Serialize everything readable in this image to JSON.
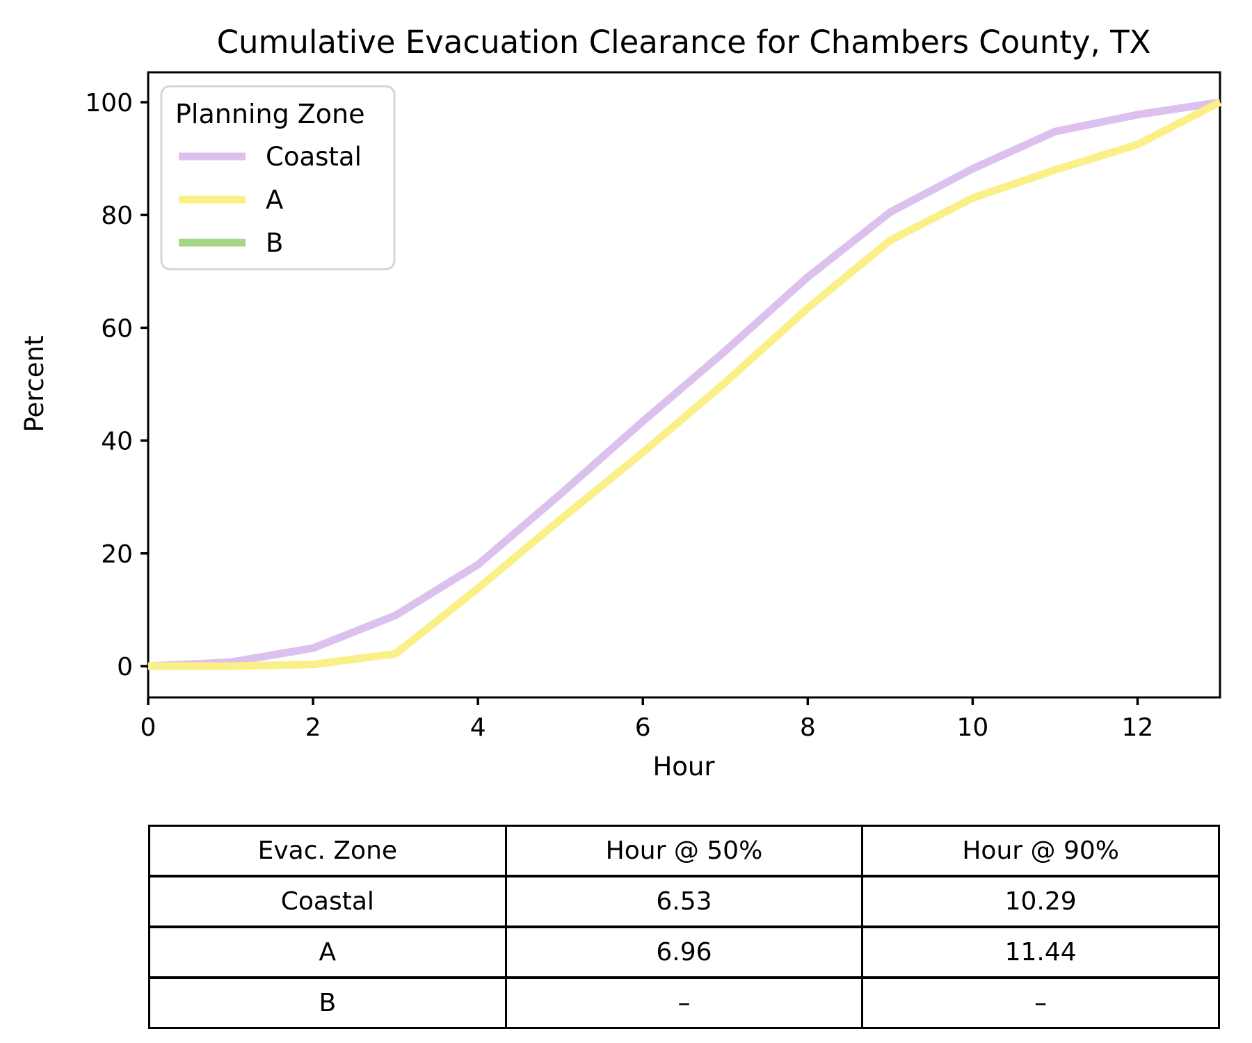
{
  "chart_data": {
    "type": "line",
    "title": "Cumulative Evacuation Clearance for Chambers County, TX",
    "xlabel": "Hour",
    "ylabel": "Percent",
    "xlim": [
      0,
      13
    ],
    "ylim": [
      -5.5,
      105.3
    ],
    "grid": false,
    "x_ticks": [
      0,
      2,
      4,
      6,
      8,
      10,
      12
    ],
    "y_ticks": [
      0,
      20,
      40,
      60,
      80,
      100
    ],
    "legend": {
      "title": "Planning Zone",
      "position": "upper-left"
    },
    "x": [
      0,
      1,
      2,
      3,
      4,
      5,
      6,
      7,
      8,
      9,
      10,
      11,
      12,
      13
    ],
    "series": [
      {
        "name": "Coastal",
        "color": "#dcc0ee",
        "values": [
          0,
          0.7,
          3.2,
          9,
          18,
          30.5,
          43.4,
          55.9,
          69,
          80.5,
          88.2,
          94.8,
          97.8,
          100
        ]
      },
      {
        "name": "A",
        "color": "#faf087",
        "values": [
          0,
          0,
          0.3,
          2.2,
          13.8,
          26,
          37.9,
          50.3,
          63.5,
          75.5,
          83,
          88,
          92.5,
          100
        ]
      },
      {
        "name": "B",
        "color": "#a5d587",
        "values": null
      }
    ]
  },
  "table": {
    "headers": [
      "Evac. Zone",
      "Hour @ 50%",
      "Hour @ 90%"
    ],
    "rows": [
      [
        "Coastal",
        "6.53",
        "10.29"
      ],
      [
        "A",
        "6.96",
        "11.44"
      ],
      [
        "B",
        "–",
        "–"
      ]
    ]
  },
  "colors": {
    "coastal_line": "#dcc0ee",
    "a_line": "#faf087",
    "b_line": "#a5d587",
    "axis": "#000000",
    "legend_border": "#d5d5d5",
    "background": "#ffffff"
  }
}
